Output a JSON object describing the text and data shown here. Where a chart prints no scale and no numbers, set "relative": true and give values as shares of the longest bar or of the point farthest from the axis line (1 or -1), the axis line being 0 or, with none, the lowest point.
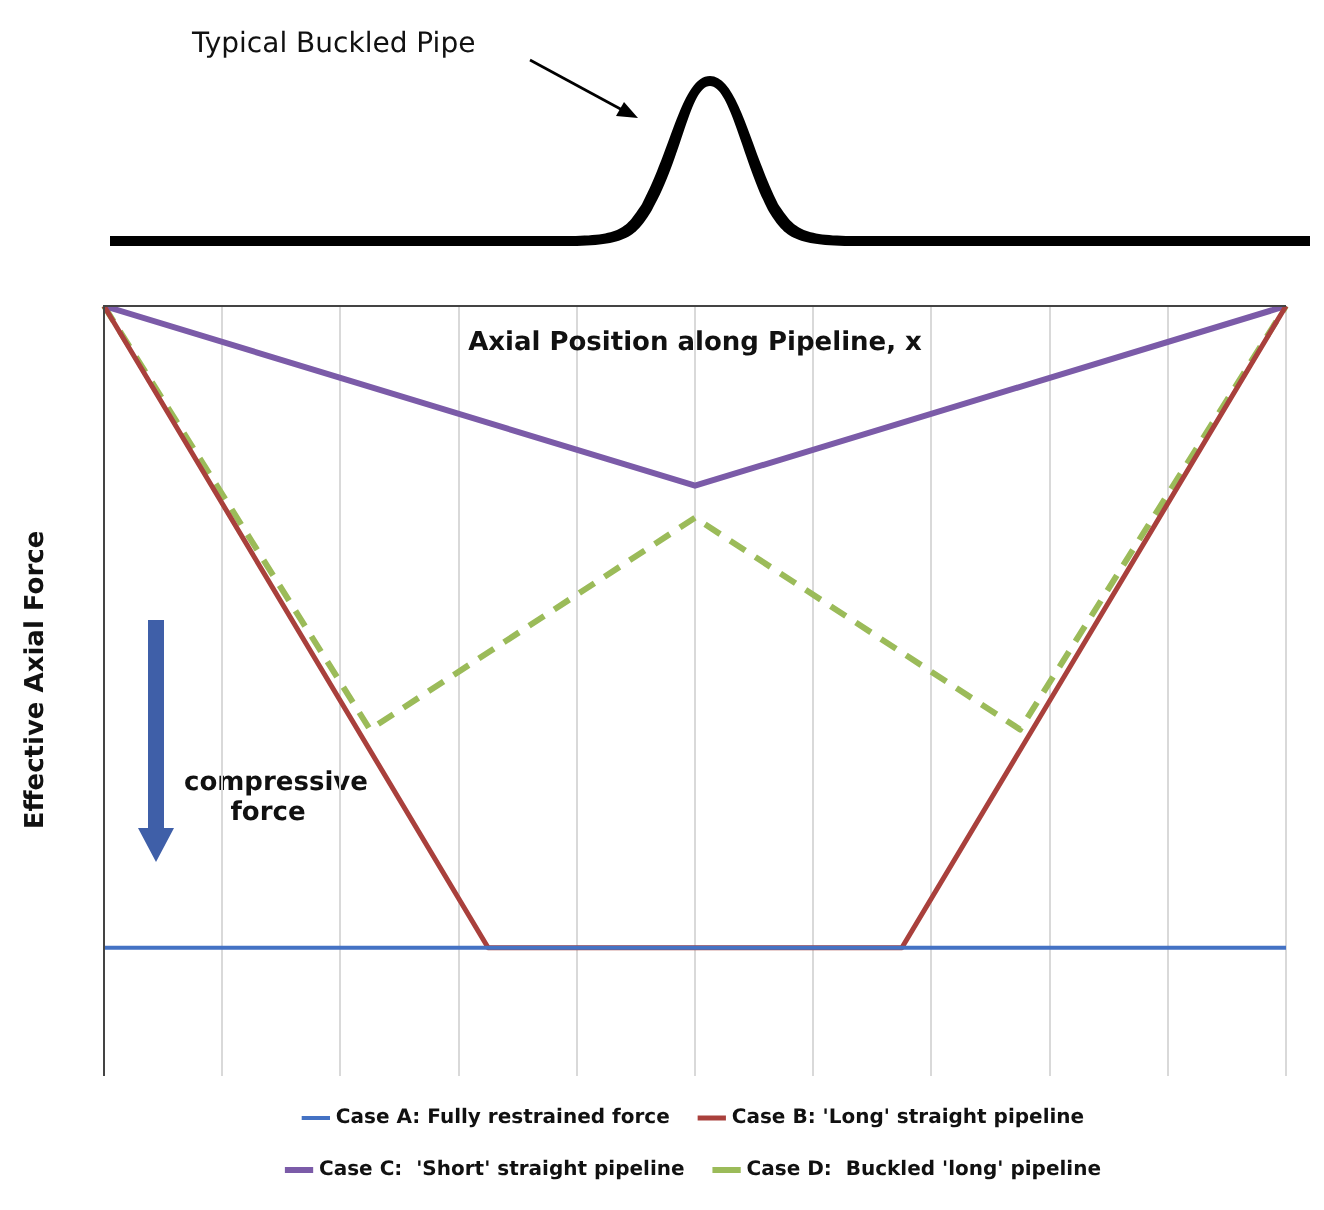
{
  "chart_data": {
    "type": "line",
    "relative": true,
    "xlabel": "Axial Position along Pipeline, x",
    "ylabel": "Effective Axial Force",
    "annotations": [
      "Typical Buckled Pipe",
      "compressive force"
    ],
    "categories": [
      null,
      null,
      null,
      null,
      null,
      null,
      null,
      null,
      null,
      null,
      null,
      null,
      null,
      null,
      null,
      null,
      null,
      null,
      null,
      null,
      null,
      null,
      null,
      null,
      null,
      null,
      null,
      null,
      null,
      null,
      null,
      null,
      null,
      null,
      null,
      null,
      null,
      null,
      null,
      null,
      null
    ],
    "series": [
      {
        "name": "Case A: Fully restrained force",
        "color": "#4472c4",
        "values": [
          -1,
          null,
          null,
          null,
          null,
          null,
          null,
          null,
          null,
          null,
          null,
          null,
          null,
          null,
          null,
          null,
          null,
          null,
          null,
          null,
          null,
          null,
          null,
          null,
          null,
          null,
          null,
          null,
          null,
          null,
          null,
          null,
          null,
          null,
          null,
          null,
          null,
          null,
          null,
          null,
          -1
        ]
      },
      {
        "name": "Case B: 'Long' straight pipeline",
        "color": "#a9403c",
        "values": [
          0,
          null,
          null,
          null,
          null,
          null,
          null,
          null,
          null,
          null,
          null,
          null,
          null,
          -1,
          null,
          null,
          null,
          null,
          null,
          null,
          null,
          null,
          null,
          null,
          null,
          null,
          null,
          -1,
          null,
          null,
          null,
          null,
          null,
          null,
          null,
          null,
          null,
          null,
          null,
          null,
          0
        ]
      },
      {
        "name": "Case C:  'Short' straight pipeline",
        "color": "#7b5ba8",
        "values": [
          0,
          null,
          null,
          null,
          null,
          null,
          null,
          null,
          null,
          null,
          null,
          null,
          null,
          null,
          null,
          null,
          null,
          null,
          null,
          null,
          -0.28,
          null,
          null,
          null,
          null,
          null,
          null,
          null,
          null,
          null,
          null,
          null,
          null,
          null,
          null,
          null,
          null,
          null,
          null,
          null,
          0
        ]
      },
      {
        "name": "Case D:  Buckled 'long' pipeline",
        "color": "#9bbb59",
        "line_style": "dashed",
        "values": [
          0,
          null,
          null,
          null,
          null,
          null,
          null,
          null,
          null,
          -0.66,
          null,
          null,
          null,
          null,
          null,
          null,
          null,
          null,
          null,
          null,
          -0.33,
          null,
          null,
          null,
          null,
          null,
          null,
          null,
          null,
          null,
          null,
          -0.66,
          null,
          null,
          null,
          null,
          null,
          null,
          null,
          null,
          0
        ]
      }
    ],
    "grid": "x",
    "legend": "bottom",
    "marker": "none",
    "line_style": "solid"
  }
}
